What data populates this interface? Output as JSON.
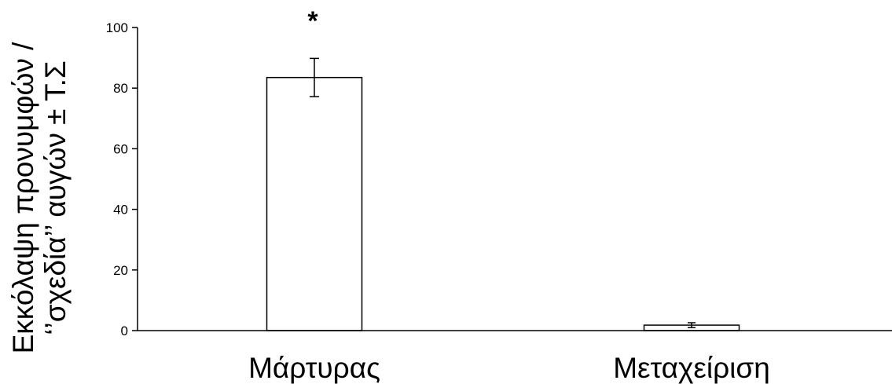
{
  "chart_data": {
    "type": "bar",
    "categories": [
      "Μάρτυρας",
      "Μεταχείριση"
    ],
    "series": [
      {
        "values": [
          83.5,
          1.8
        ],
        "errors": [
          6.3,
          0.8
        ],
        "annotations": [
          "*",
          ""
        ]
      }
    ],
    "title": "",
    "xlabel": "",
    "ylabel_lines": [
      "Εκκόλαψη προνυμφών /",
      "‘’σχεδία’’ αυγών ± Τ.Σ"
    ],
    "ylim": [
      0,
      100
    ],
    "yticks": [
      0,
      20,
      40,
      60,
      80,
      100
    ],
    "grid": false,
    "legend": "none",
    "bar_fill": "#ffffff",
    "bar_stroke": "#000000"
  }
}
